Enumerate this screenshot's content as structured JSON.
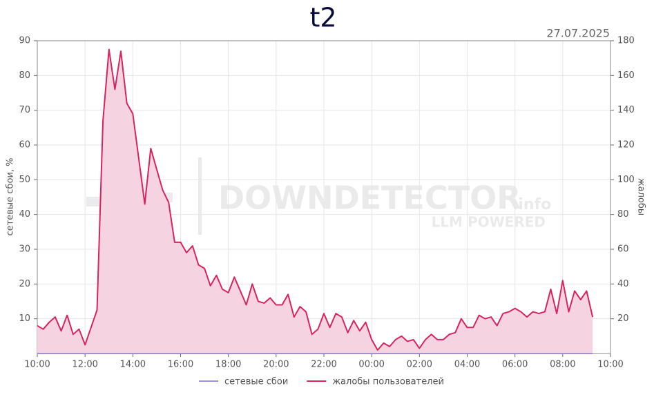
{
  "chart_data": {
    "type": "line",
    "title": "t2",
    "date": "27.07.2025",
    "y_label": "сетевые сбои, %",
    "y2_label": "жалобы",
    "watermark": [
      "DOWNDETECTOR",
      ".info",
      "LLM POWERED"
    ],
    "categories": [
      "10:00",
      null,
      null,
      null,
      null,
      null,
      null,
      null,
      "12:00",
      null,
      null,
      null,
      null,
      null,
      null,
      null,
      "14:00",
      null,
      null,
      null,
      null,
      null,
      null,
      null,
      "16:00",
      null,
      null,
      null,
      null,
      null,
      null,
      null,
      "18:00",
      null,
      null,
      null,
      null,
      null,
      null,
      null,
      "20:00",
      null,
      null,
      null,
      null,
      null,
      null,
      null,
      "22:00",
      null,
      null,
      null,
      null,
      null,
      null,
      null,
      "00:00",
      null,
      null,
      null,
      null,
      null,
      null,
      null,
      "02:00",
      null,
      null,
      null,
      null,
      null,
      null,
      null,
      "04:00",
      null,
      null,
      null,
      null,
      null,
      null,
      null,
      "06:00",
      null,
      null,
      null,
      null,
      null,
      null,
      null,
      "08:00",
      null,
      null,
      null,
      null,
      null,
      null,
      null,
      "10:00"
    ],
    "ylim": [
      0,
      90
    ],
    "yticks": [
      10,
      20,
      30,
      40,
      50,
      60,
      70,
      80,
      90
    ],
    "y2lim": [
      0,
      180
    ],
    "y2ticks": [
      20,
      40,
      60,
      80,
      100,
      120,
      140,
      160,
      180
    ],
    "grid": true,
    "series": [
      {
        "name": "сетевые сбои",
        "color": "#9b8fe0",
        "values": [
          0,
          0,
          0,
          0,
          0,
          0,
          0,
          0,
          0,
          0,
          0,
          0,
          0,
          0,
          0,
          0,
          0,
          0,
          0,
          0,
          0,
          0,
          0,
          0,
          0,
          0,
          0,
          0,
          0,
          0,
          0,
          0,
          0,
          0,
          0,
          0,
          0,
          0,
          0,
          0,
          0,
          0,
          0,
          0,
          0,
          0,
          0,
          0,
          0,
          0,
          0,
          0,
          0,
          0,
          0,
          0,
          0,
          0,
          0,
          0,
          0,
          0,
          0,
          0,
          0,
          0,
          0,
          0,
          0,
          0,
          0,
          0,
          0,
          0,
          0,
          0,
          0,
          0,
          0,
          0,
          0,
          0,
          0,
          0,
          0,
          0,
          0,
          0,
          0,
          0,
          0,
          0,
          0,
          0,
          null,
          null,
          null
        ]
      },
      {
        "name": "жалобы пользователей",
        "color": "#d6245f",
        "fill": "#f6d3e1",
        "axis": "y2",
        "values": [
          16,
          14,
          18,
          21,
          13,
          22,
          11,
          14,
          5,
          15,
          25,
          134,
          175,
          152,
          174,
          144,
          138,
          112,
          86,
          118,
          106,
          94,
          87,
          64,
          64,
          58,
          62,
          51,
          49,
          39,
          45,
          37,
          35,
          44,
          36,
          28,
          40,
          30,
          29,
          32,
          28,
          28,
          34,
          21,
          27,
          24,
          11,
          14,
          23,
          15,
          23,
          21,
          12,
          19,
          13,
          18,
          8,
          2,
          6,
          4,
          8,
          10,
          7,
          8,
          3,
          8,
          11,
          8,
          8,
          11,
          12,
          20,
          15,
          15,
          22,
          20,
          21,
          16,
          23,
          24,
          26,
          24,
          21,
          24,
          23,
          24,
          37,
          23,
          42,
          24,
          36,
          31,
          36,
          21,
          null,
          null,
          null
        ]
      }
    ]
  }
}
